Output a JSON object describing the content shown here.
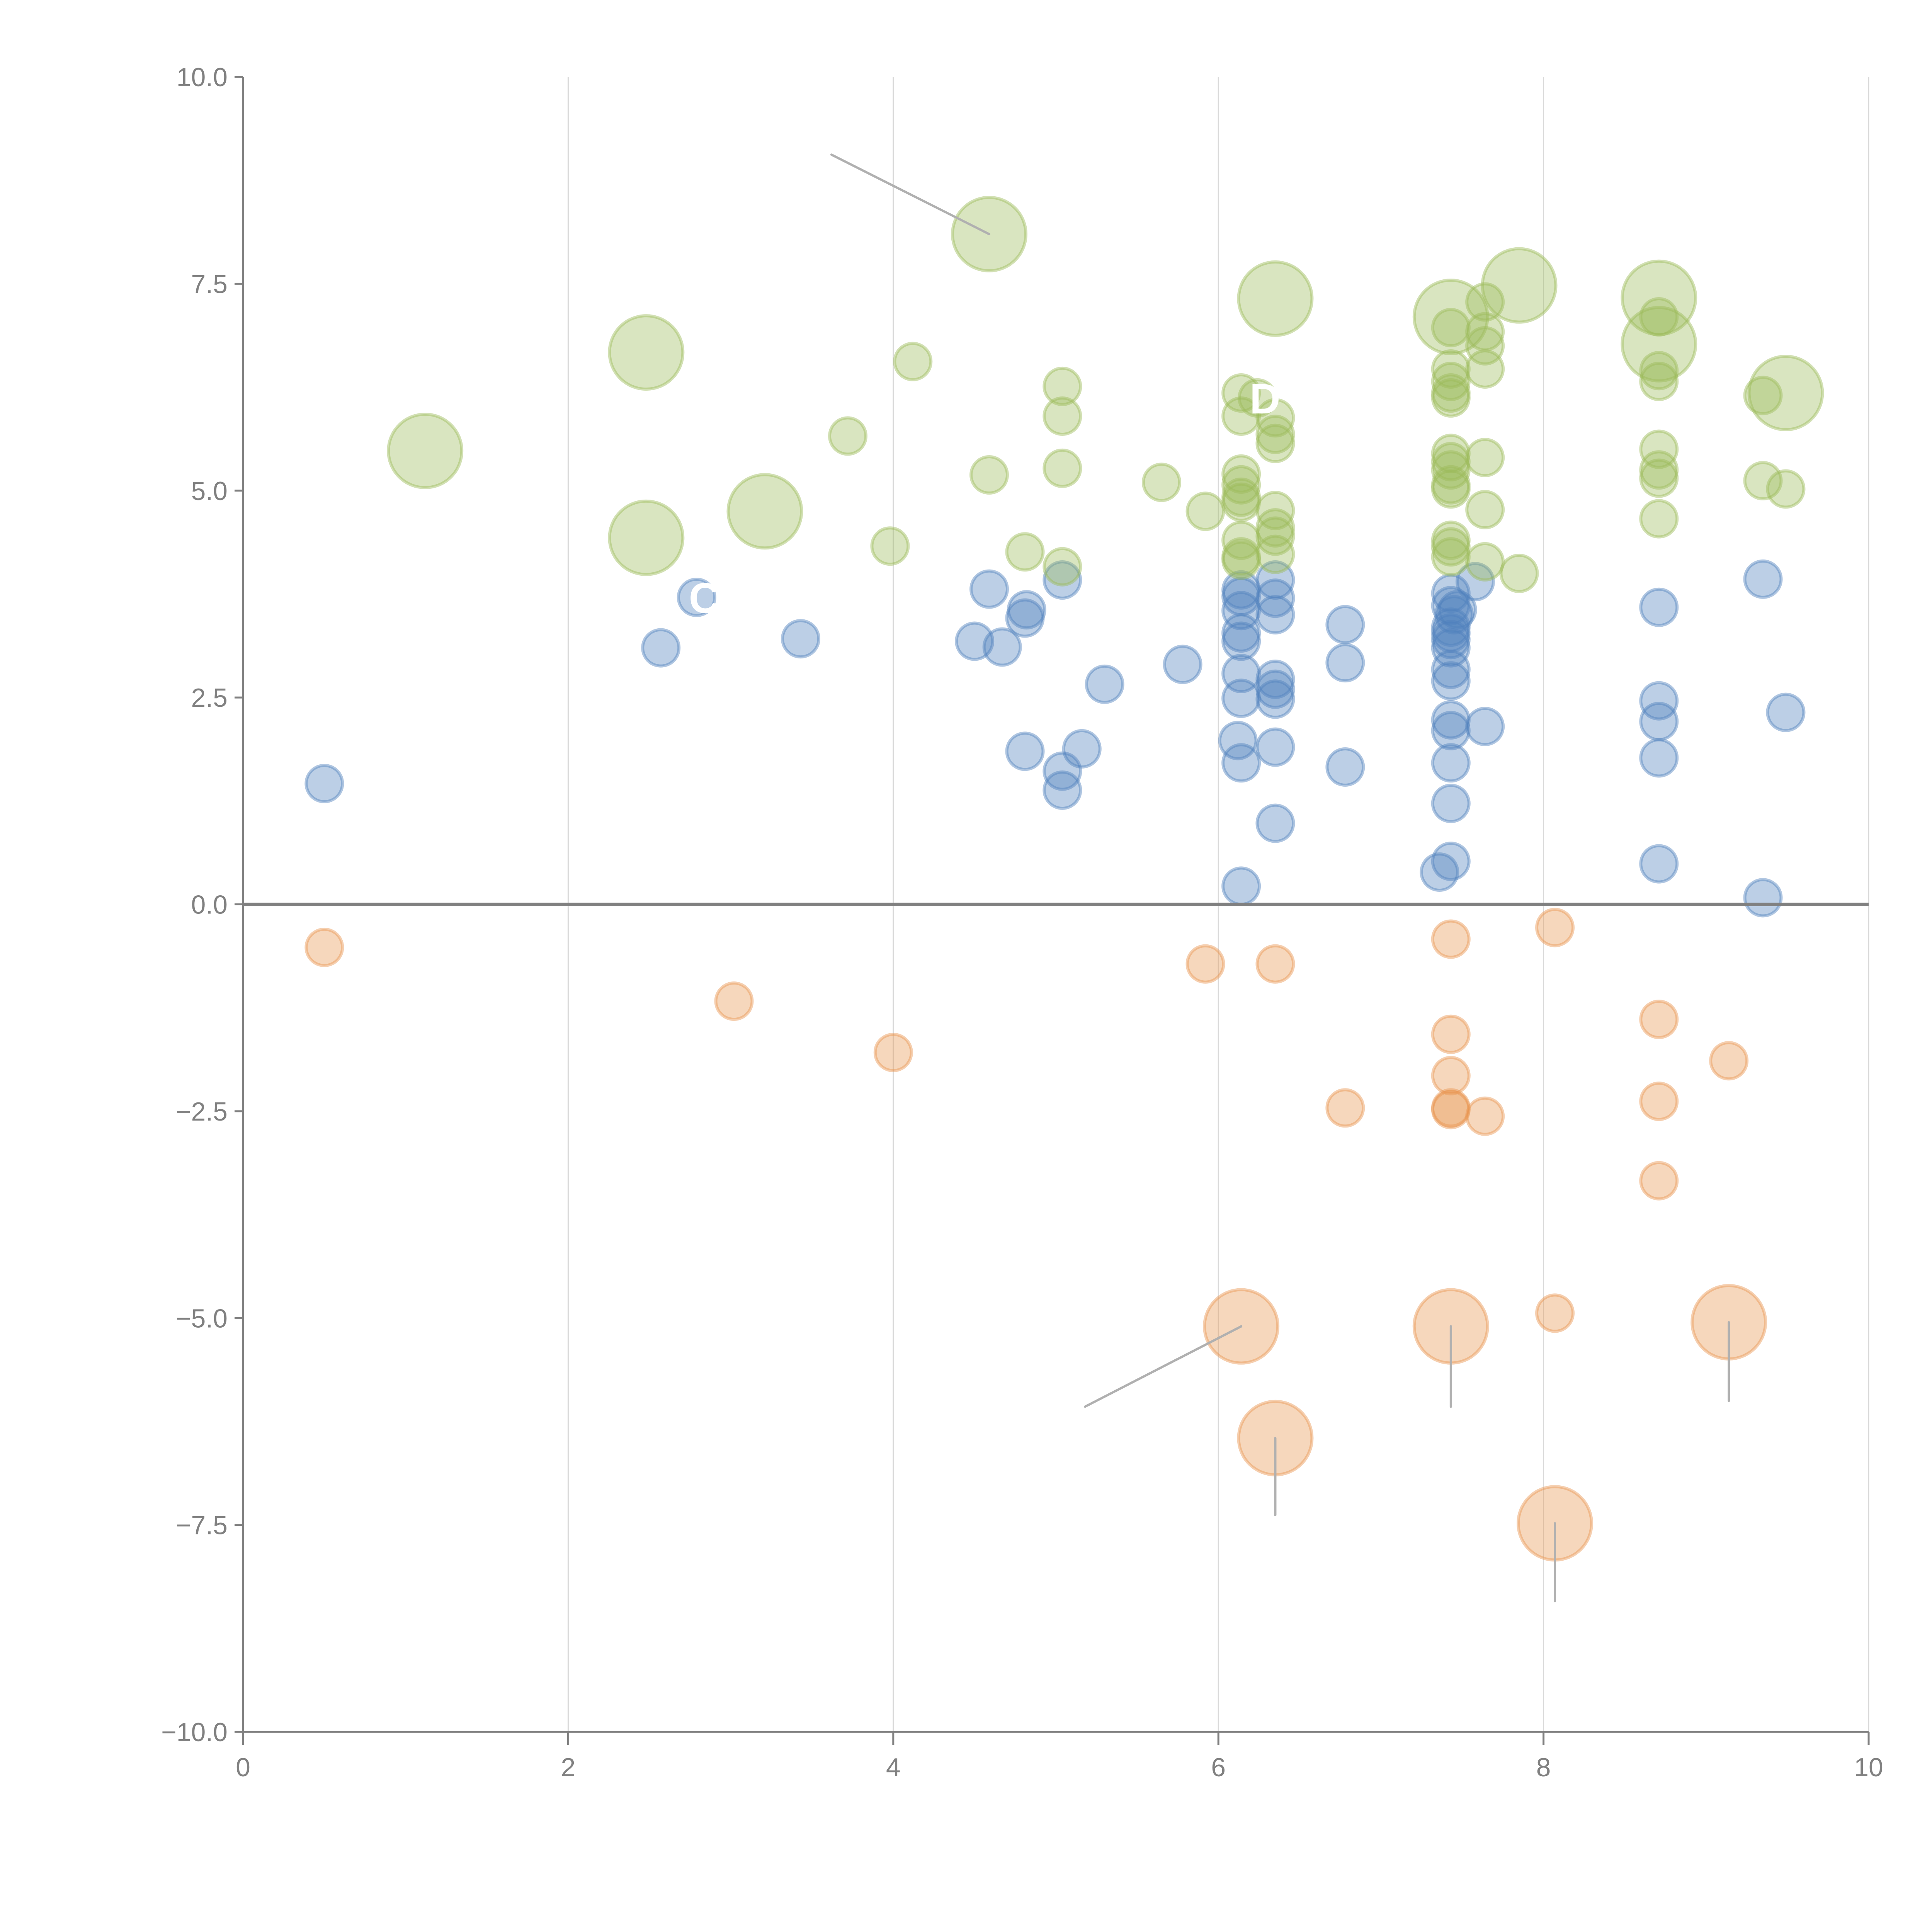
{
  "chart_data": {
    "type": "scatter",
    "subtype": "bubble",
    "title": "",
    "xlabel": "",
    "ylabel": "",
    "xlim": [
      0,
      10
    ],
    "ylim": [
      -10,
      10
    ],
    "x_ticks": [
      "0",
      "2",
      "4",
      "6",
      "8",
      "10"
    ],
    "y_ticks": [
      "10.0",
      "7.5",
      "5.0",
      "2.5",
      "0.0",
      "−2.5",
      "−5.0",
      "−7.5",
      "−10.0"
    ],
    "x_tick_values": [
      0,
      2,
      4,
      6,
      8,
      10
    ],
    "y_tick_values": [
      10,
      7.5,
      5,
      2.5,
      0,
      -2.5,
      -5,
      -7.5,
      -10
    ],
    "grid": {
      "x": true,
      "y": false
    },
    "zero_line": true,
    "legend": "none",
    "colors": {
      "blue": "#4f81bd",
      "orange": "#e8954f",
      "green": "#9bbb59",
      "axis": "#808080",
      "grid": "#d9d9d9",
      "leader": "#b0b0b0"
    },
    "series": [
      {
        "name": "blue",
        "color": "#4f81bd",
        "points": [
          {
            "x": 0.5,
            "y": 1.46,
            "s": 1
          },
          {
            "x": 2.57,
            "y": 3.1,
            "s": 1
          },
          {
            "x": 2.79,
            "y": 3.71,
            "s": 1
          },
          {
            "x": 3.43,
            "y": 3.21,
            "s": 1
          },
          {
            "x": 4.5,
            "y": 3.18,
            "s": 1
          },
          {
            "x": 4.59,
            "y": 3.81,
            "s": 1
          },
          {
            "x": 4.67,
            "y": 3.11,
            "s": 1
          },
          {
            "x": 4.81,
            "y": 3.46,
            "s": 1
          },
          {
            "x": 4.82,
            "y": 3.56,
            "s": 1
          },
          {
            "x": 4.81,
            "y": 1.85,
            "s": 1
          },
          {
            "x": 5.04,
            "y": 3.92,
            "s": 1
          },
          {
            "x": 5.04,
            "y": 1.61,
            "s": 1
          },
          {
            "x": 5.04,
            "y": 1.38,
            "s": 1
          },
          {
            "x": 5.16,
            "y": 1.88,
            "s": 1
          },
          {
            "x": 5.3,
            "y": 2.66,
            "s": 1
          },
          {
            "x": 5.78,
            "y": 2.9,
            "s": 1
          },
          {
            "x": 6.14,
            "y": 3.8,
            "s": 1
          },
          {
            "x": 6.14,
            "y": 3.72,
            "s": 1
          },
          {
            "x": 6.14,
            "y": 3.55,
            "s": 1
          },
          {
            "x": 6.14,
            "y": 3.28,
            "s": 1
          },
          {
            "x": 6.14,
            "y": 3.18,
            "s": 1
          },
          {
            "x": 6.14,
            "y": 2.79,
            "s": 1
          },
          {
            "x": 6.14,
            "y": 2.49,
            "s": 1
          },
          {
            "x": 6.12,
            "y": 1.98,
            "s": 1
          },
          {
            "x": 6.14,
            "y": 1.71,
            "s": 1
          },
          {
            "x": 6.14,
            "y": 0.22,
            "s": 1
          },
          {
            "x": 6.35,
            "y": 3.92,
            "s": 1
          },
          {
            "x": 6.35,
            "y": 3.7,
            "s": 1
          },
          {
            "x": 6.35,
            "y": 3.5,
            "s": 1
          },
          {
            "x": 6.35,
            "y": 2.72,
            "s": 1
          },
          {
            "x": 6.35,
            "y": 2.6,
            "s": 1
          },
          {
            "x": 6.35,
            "y": 2.48,
            "s": 1
          },
          {
            "x": 6.35,
            "y": 1.9,
            "s": 1
          },
          {
            "x": 6.35,
            "y": 0.98,
            "s": 1
          },
          {
            "x": 6.78,
            "y": 3.38,
            "s": 1
          },
          {
            "x": 6.78,
            "y": 2.92,
            "s": 1
          },
          {
            "x": 6.78,
            "y": 1.66,
            "s": 1
          },
          {
            "x": 7.43,
            "y": 3.76,
            "s": 1
          },
          {
            "x": 7.43,
            "y": 3.61,
            "s": 1
          },
          {
            "x": 7.45,
            "y": 3.5,
            "s": 1
          },
          {
            "x": 7.43,
            "y": 3.35,
            "s": 1
          },
          {
            "x": 7.43,
            "y": 3.28,
            "s": 1
          },
          {
            "x": 7.43,
            "y": 3.2,
            "s": 1
          },
          {
            "x": 7.43,
            "y": 3.1,
            "s": 1
          },
          {
            "x": 7.43,
            "y": 2.84,
            "s": 1
          },
          {
            "x": 7.43,
            "y": 2.7,
            "s": 1
          },
          {
            "x": 7.43,
            "y": 2.23,
            "s": 1
          },
          {
            "x": 7.43,
            "y": 2.1,
            "s": 1
          },
          {
            "x": 7.43,
            "y": 1.71,
            "s": 1
          },
          {
            "x": 7.43,
            "y": 1.22,
            "s": 1
          },
          {
            "x": 7.43,
            "y": 0.52,
            "s": 1
          },
          {
            "x": 7.36,
            "y": 0.39,
            "s": 1
          },
          {
            "x": 7.47,
            "y": 3.56,
            "s": 1
          },
          {
            "x": 7.58,
            "y": 3.9,
            "s": 1
          },
          {
            "x": 7.64,
            "y": 2.15,
            "s": 1
          },
          {
            "x": 8.71,
            "y": 3.59,
            "s": 1
          },
          {
            "x": 8.71,
            "y": 2.46,
            "s": 1
          },
          {
            "x": 8.71,
            "y": 2.21,
            "s": 1
          },
          {
            "x": 8.71,
            "y": 1.77,
            "s": 1
          },
          {
            "x": 8.71,
            "y": 0.49,
            "s": 1
          },
          {
            "x": 9.35,
            "y": 3.93,
            "s": 1
          },
          {
            "x": 9.49,
            "y": 2.32,
            "s": 1
          },
          {
            "x": 9.35,
            "y": 0.08,
            "s": 1
          }
        ]
      },
      {
        "name": "orange",
        "color": "#e8954f",
        "points": [
          {
            "x": 0.5,
            "y": -0.52,
            "s": 1
          },
          {
            "x": 3.02,
            "y": -1.17,
            "s": 1
          },
          {
            "x": 4.0,
            "y": -1.79,
            "s": 1
          },
          {
            "x": 5.92,
            "y": -0.72,
            "s": 1
          },
          {
            "x": 6.35,
            "y": -0.72,
            "s": 1
          },
          {
            "x": 6.78,
            "y": -2.46,
            "s": 1
          },
          {
            "x": 7.43,
            "y": -0.42,
            "s": 1
          },
          {
            "x": 7.43,
            "y": -1.57,
            "s": 1
          },
          {
            "x": 7.43,
            "y": -2.07,
            "s": 1
          },
          {
            "x": 7.43,
            "y": -2.46,
            "s": 1
          },
          {
            "x": 7.43,
            "y": -2.48,
            "s": 1
          },
          {
            "x": 7.64,
            "y": -2.56,
            "s": 1
          },
          {
            "x": 8.07,
            "y": -0.28,
            "s": 1
          },
          {
            "x": 8.71,
            "y": -1.39,
            "s": 1
          },
          {
            "x": 8.71,
            "y": -2.38,
            "s": 1
          },
          {
            "x": 8.71,
            "y": -3.34,
            "s": 1
          },
          {
            "x": 9.14,
            "y": -1.89,
            "s": 1
          },
          {
            "x": 8.07,
            "y": -4.94,
            "s": 1
          },
          {
            "x": 6.14,
            "y": -5.1,
            "s": 2
          },
          {
            "x": 7.43,
            "y": -5.1,
            "s": 2
          },
          {
            "x": 9.14,
            "y": -5.05,
            "s": 2
          },
          {
            "x": 6.35,
            "y": -6.45,
            "s": 2
          },
          {
            "x": 8.07,
            "y": -7.48,
            "s": 2
          }
        ]
      },
      {
        "name": "green",
        "color": "#9bbb59",
        "points": [
          {
            "x": 1.12,
            "y": 5.48,
            "s": 2
          },
          {
            "x": 2.48,
            "y": 6.67,
            "s": 2
          },
          {
            "x": 2.48,
            "y": 4.43,
            "s": 2
          },
          {
            "x": 3.21,
            "y": 4.75,
            "s": 2
          },
          {
            "x": 4.59,
            "y": 8.1,
            "s": 2
          },
          {
            "x": 3.72,
            "y": 5.66,
            "s": 1
          },
          {
            "x": 3.98,
            "y": 4.33,
            "s": 1
          },
          {
            "x": 4.12,
            "y": 6.56,
            "s": 1
          },
          {
            "x": 4.59,
            "y": 5.19,
            "s": 1
          },
          {
            "x": 4.81,
            "y": 4.26,
            "s": 1
          },
          {
            "x": 5.04,
            "y": 6.26,
            "s": 1
          },
          {
            "x": 5.04,
            "y": 5.9,
            "s": 1
          },
          {
            "x": 5.04,
            "y": 5.27,
            "s": 1
          },
          {
            "x": 5.04,
            "y": 4.08,
            "s": 1
          },
          {
            "x": 5.65,
            "y": 5.1,
            "s": 1
          },
          {
            "x": 5.92,
            "y": 4.75,
            "s": 1
          },
          {
            "x": 6.14,
            "y": 6.18,
            "s": 1
          },
          {
            "x": 6.14,
            "y": 5.9,
            "s": 1
          },
          {
            "x": 6.14,
            "y": 5.2,
            "s": 1
          },
          {
            "x": 6.14,
            "y": 5.07,
            "s": 1
          },
          {
            "x": 6.14,
            "y": 4.92,
            "s": 1
          },
          {
            "x": 6.14,
            "y": 4.86,
            "s": 1
          },
          {
            "x": 6.14,
            "y": 4.4,
            "s": 1
          },
          {
            "x": 6.14,
            "y": 4.16,
            "s": 1
          },
          {
            "x": 6.14,
            "y": 4.2,
            "s": 1
          },
          {
            "x": 6.24,
            "y": 6.12,
            "s": 1
          },
          {
            "x": 6.35,
            "y": 7.32,
            "s": 2
          },
          {
            "x": 6.35,
            "y": 5.88,
            "s": 1
          },
          {
            "x": 6.35,
            "y": 5.68,
            "s": 1
          },
          {
            "x": 6.35,
            "y": 5.57,
            "s": 1
          },
          {
            "x": 6.35,
            "y": 4.76,
            "s": 1
          },
          {
            "x": 6.35,
            "y": 4.55,
            "s": 1
          },
          {
            "x": 6.35,
            "y": 4.23,
            "s": 1
          },
          {
            "x": 6.35,
            "y": 4.45,
            "s": 1
          },
          {
            "x": 7.43,
            "y": 7.1,
            "s": 2
          },
          {
            "x": 7.43,
            "y": 6.97,
            "s": 1
          },
          {
            "x": 7.43,
            "y": 6.47,
            "s": 1
          },
          {
            "x": 7.43,
            "y": 6.32,
            "s": 1
          },
          {
            "x": 7.43,
            "y": 6.18,
            "s": 1
          },
          {
            "x": 7.43,
            "y": 6.12,
            "s": 1
          },
          {
            "x": 7.43,
            "y": 5.45,
            "s": 1
          },
          {
            "x": 7.43,
            "y": 5.35,
            "s": 1
          },
          {
            "x": 7.43,
            "y": 5.25,
            "s": 1
          },
          {
            "x": 7.43,
            "y": 5.07,
            "s": 1
          },
          {
            "x": 7.43,
            "y": 5.02,
            "s": 1
          },
          {
            "x": 7.43,
            "y": 4.4,
            "s": 1
          },
          {
            "x": 7.43,
            "y": 4.32,
            "s": 1
          },
          {
            "x": 7.43,
            "y": 4.2,
            "s": 1
          },
          {
            "x": 7.64,
            "y": 7.28,
            "s": 1
          },
          {
            "x": 7.64,
            "y": 6.92,
            "s": 1
          },
          {
            "x": 7.64,
            "y": 6.75,
            "s": 1
          },
          {
            "x": 7.64,
            "y": 6.47,
            "s": 1
          },
          {
            "x": 7.64,
            "y": 5.4,
            "s": 1
          },
          {
            "x": 7.64,
            "y": 4.77,
            "s": 1
          },
          {
            "x": 7.64,
            "y": 4.14,
            "s": 1
          },
          {
            "x": 7.85,
            "y": 7.48,
            "s": 2
          },
          {
            "x": 7.85,
            "y": 4.0,
            "s": 1
          },
          {
            "x": 8.71,
            "y": 7.33,
            "s": 2
          },
          {
            "x": 8.71,
            "y": 6.77,
            "s": 2
          },
          {
            "x": 8.71,
            "y": 7.1,
            "s": 1
          },
          {
            "x": 8.71,
            "y": 6.45,
            "s": 1
          },
          {
            "x": 8.71,
            "y": 6.32,
            "s": 1
          },
          {
            "x": 8.71,
            "y": 5.5,
            "s": 1
          },
          {
            "x": 8.71,
            "y": 5.25,
            "s": 1
          },
          {
            "x": 8.71,
            "y": 5.15,
            "s": 1
          },
          {
            "x": 8.71,
            "y": 4.66,
            "s": 1
          },
          {
            "x": 9.35,
            "y": 6.15,
            "s": 1
          },
          {
            "x": 9.49,
            "y": 6.18,
            "s": 2
          },
          {
            "x": 9.35,
            "y": 5.12,
            "s": 1
          },
          {
            "x": 9.49,
            "y": 5.02,
            "s": 1
          }
        ]
      }
    ],
    "annotations": [
      {
        "text": "C",
        "x": 2.79,
        "y": 3.71
      },
      {
        "text": "D",
        "x": 6.24,
        "y": 6.12
      }
    ],
    "leader_lines": [
      {
        "from": [
          4.59,
          8.1
        ],
        "to": [
          3.62,
          9.06
        ]
      },
      {
        "from": [
          6.14,
          -5.1
        ],
        "to": [
          5.18,
          -6.07
        ]
      },
      {
        "from": [
          7.43,
          -5.1
        ],
        "to": [
          7.43,
          -6.07
        ]
      },
      {
        "from": [
          9.14,
          -5.05
        ],
        "to": [
          9.14,
          -6.0
        ]
      },
      {
        "from": [
          6.35,
          -6.45
        ],
        "to": [
          6.35,
          -7.38
        ]
      },
      {
        "from": [
          8.07,
          -7.48
        ],
        "to": [
          8.07,
          -8.42
        ]
      }
    ]
  }
}
